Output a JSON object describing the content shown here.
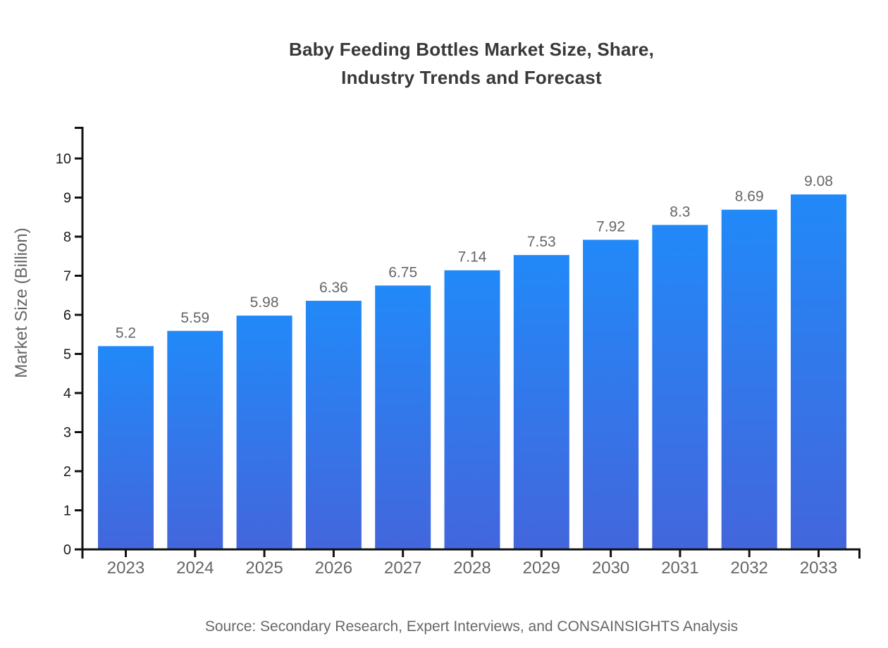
{
  "chart_data": {
    "type": "bar",
    "title": "Baby Feeding Bottles Market Size, Share,\nIndustry Trends and Forecast",
    "xlabel": "",
    "ylabel": "Market Size (Billion)",
    "categories": [
      "2023",
      "2024",
      "2025",
      "2026",
      "2027",
      "2028",
      "2029",
      "2030",
      "2031",
      "2032",
      "2033"
    ],
    "values": [
      5.2,
      5.59,
      5.98,
      6.36,
      6.75,
      7.14,
      7.53,
      7.92,
      8.3,
      8.69,
      9.08
    ],
    "ylim": [
      0,
      10
    ],
    "ytick_step": 1,
    "grid": false,
    "legend": false,
    "style": {
      "bar_gradient_top": "#2289F8",
      "bar_gradient_bottom": "#4366DC",
      "axis_color": "#111111",
      "value_label_color": "#666666",
      "x_tick_label_color": "#666666",
      "y_tick_label_color": "#1a1a1a",
      "title_color": "#383838"
    }
  },
  "footer": {
    "source": "Source: Secondary Research, Expert Interviews, and CONSAINSIGHTS Analysis"
  }
}
